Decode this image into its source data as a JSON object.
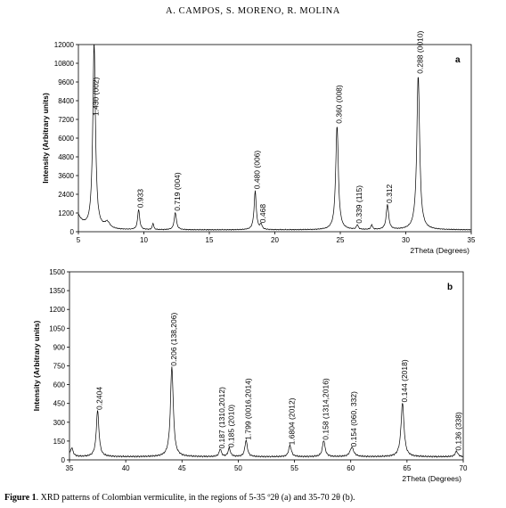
{
  "running_head": "A. CAMPOS, S. MORENO, R. MOLINA",
  "caption": {
    "label": "Figure 1",
    "text": ". XRD patterns of Colombian vermiculite, in the regions of 5-35 º2θ (a) and 35-70 2θ (b)."
  },
  "chart_data": [
    {
      "type": "line",
      "panel_label": "a",
      "xlabel": "2Theta (Degrees)",
      "ylabel": "Intensity (Arbitrary units)",
      "xlim": [
        5,
        35
      ],
      "ylim": [
        0,
        12000
      ],
      "x_ticks": [
        5,
        10,
        15,
        20,
        25,
        30,
        35
      ],
      "y_ticks": [
        0,
        1200,
        2400,
        3600,
        4800,
        6000,
        7200,
        8400,
        9600,
        10800,
        12000
      ],
      "grid": false,
      "baseline": 120,
      "peaks": [
        {
          "x": 6.2,
          "y": 12000,
          "w": 0.12,
          "label": "1.430 (002)"
        },
        {
          "x": 7.2,
          "y": 430,
          "w": 0.25,
          "label": ""
        },
        {
          "x": 9.6,
          "y": 1300,
          "w": 0.09,
          "label": "0.933"
        },
        {
          "x": 10.7,
          "y": 420,
          "w": 0.06,
          "label": ""
        },
        {
          "x": 12.4,
          "y": 1100,
          "w": 0.1,
          "label": "0.719 (004)"
        },
        {
          "x": 18.5,
          "y": 2500,
          "w": 0.1,
          "label": "0.480 (006)"
        },
        {
          "x": 18.95,
          "y": 330,
          "w": 0.08,
          "label": "0.468"
        },
        {
          "x": 24.75,
          "y": 6700,
          "w": 0.12,
          "label": "0.360 (008)"
        },
        {
          "x": 26.3,
          "y": 300,
          "w": 0.08,
          "label": "0.339 (115)"
        },
        {
          "x": 27.4,
          "y": 300,
          "w": 0.07,
          "label": ""
        },
        {
          "x": 28.6,
          "y": 1600,
          "w": 0.11,
          "label": "0.312"
        },
        {
          "x": 30.95,
          "y": 9900,
          "w": 0.13,
          "label": "0.288 (0010)"
        }
      ]
    },
    {
      "type": "line",
      "panel_label": "b",
      "xlabel": "2Theta (Degrees)",
      "ylabel": "Intensity (Arbitrary units)",
      "xlim": [
        35,
        70
      ],
      "ylim": [
        0,
        1500
      ],
      "x_ticks": [
        35,
        40,
        45,
        50,
        55,
        60,
        65,
        70
      ],
      "y_ticks": [
        0,
        150,
        300,
        450,
        600,
        750,
        900,
        1050,
        1200,
        1350,
        1500
      ],
      "grid": false,
      "baseline": 25,
      "peaks": [
        {
          "x": 35.2,
          "y": 70,
          "w": 0.15,
          "label": ""
        },
        {
          "x": 37.5,
          "y": 370,
          "w": 0.14,
          "label": "0.2404"
        },
        {
          "x": 44.1,
          "y": 720,
          "w": 0.15,
          "label": "0.206 (138,206)"
        },
        {
          "x": 48.4,
          "y": 60,
          "w": 0.12,
          "label": "0.187 (1310,2012)"
        },
        {
          "x": 49.2,
          "y": 70,
          "w": 0.12,
          "label": "0.185 (2010)"
        },
        {
          "x": 50.7,
          "y": 130,
          "w": 0.13,
          "label": "1.799 (0016,2014)"
        },
        {
          "x": 54.6,
          "y": 90,
          "w": 0.14,
          "label": "1.6804 (2012)"
        },
        {
          "x": 57.6,
          "y": 130,
          "w": 0.14,
          "label": "0.158 (1314,2016)"
        },
        {
          "x": 60.1,
          "y": 75,
          "w": 0.2,
          "label": "0.154 (060, 332)"
        },
        {
          "x": 64.6,
          "y": 430,
          "w": 0.16,
          "label": "0.144 (2018)"
        },
        {
          "x": 69.4,
          "y": 45,
          "w": 0.14,
          "label": "0.136 (338)"
        }
      ]
    }
  ]
}
